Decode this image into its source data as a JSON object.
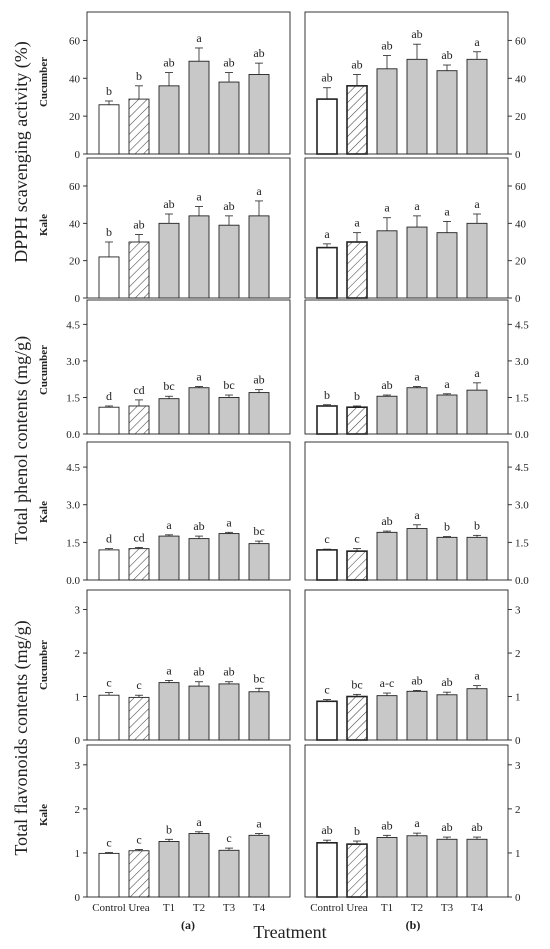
{
  "figure": {
    "xlabel": "Treatment",
    "panel_labels": [
      "(a)",
      "(b)"
    ],
    "group_ylabels": [
      "DPPH scavenging activity (%)",
      "Total phenol contents (mg/g)",
      "Total flavonoids contents (mg/g)"
    ],
    "row_labels": [
      "Cucumber",
      "Kale",
      "Cucumber",
      "Kale",
      "Cucumber",
      "Kale"
    ],
    "colors": {
      "bar_fill": "#c8c8c8",
      "control_fill": "#ffffff",
      "stroke": "#222222"
    }
  },
  "chart_data": [
    {
      "type": "bar",
      "row": "Cucumber",
      "panel": "(a)",
      "categories": [
        "Control",
        "Urea",
        "T1",
        "T2",
        "T3",
        "T4"
      ],
      "values": [
        26,
        29,
        36,
        49,
        38,
        42
      ],
      "errors": [
        2,
        7,
        7,
        7,
        5,
        6
      ],
      "letters": [
        "b",
        "b",
        "ab",
        "a",
        "ab",
        "ab"
      ],
      "ylim": [
        0,
        75
      ],
      "yticks": [
        0,
        20,
        40,
        60
      ],
      "xlabel": "",
      "ylabel": "DPPH scavenging activity (%)",
      "grid": false
    },
    {
      "type": "bar",
      "row": "Cucumber",
      "panel": "(b)",
      "categories": [
        "Control",
        "Urea",
        "T1",
        "T2",
        "T3",
        "T4"
      ],
      "values": [
        29,
        36,
        45,
        50,
        44,
        50
      ],
      "errors": [
        6,
        6,
        7,
        8,
        3,
        4
      ],
      "letters": [
        "ab",
        "ab",
        "ab",
        "ab",
        "ab",
        "a"
      ],
      "ylim": [
        0,
        75
      ],
      "yticks": [
        0,
        20,
        40,
        60
      ],
      "xlabel": "",
      "ylabel": "",
      "grid": false
    },
    {
      "type": "bar",
      "row": "Kale",
      "panel": "(a)",
      "categories": [
        "Control",
        "Urea",
        "T1",
        "T2",
        "T3",
        "T4"
      ],
      "values": [
        22,
        30,
        40,
        44,
        39,
        44
      ],
      "errors": [
        8,
        4,
        5,
        5,
        5,
        8
      ],
      "letters": [
        "b",
        "ab",
        "ab",
        "a",
        "ab",
        "a"
      ],
      "ylim": [
        0,
        75
      ],
      "yticks": [
        0,
        20,
        40,
        60
      ],
      "xlabel": "",
      "ylabel": "",
      "grid": false
    },
    {
      "type": "bar",
      "row": "Kale",
      "panel": "(b)",
      "categories": [
        "Control",
        "Urea",
        "T1",
        "T2",
        "T3",
        "T4"
      ],
      "values": [
        27,
        30,
        36,
        38,
        35,
        40
      ],
      "errors": [
        2,
        5,
        7,
        6,
        6,
        5
      ],
      "letters": [
        "a",
        "a",
        "a",
        "a",
        "a",
        "a"
      ],
      "ylim": [
        0,
        75
      ],
      "yticks": [
        0,
        20,
        40,
        60
      ],
      "xlabel": "",
      "ylabel": "",
      "grid": false
    },
    {
      "type": "bar",
      "row": "Cucumber",
      "panel": "(a)",
      "categories": [
        "Control",
        "Urea",
        "T1",
        "T2",
        "T3",
        "T4"
      ],
      "values": [
        1.1,
        1.15,
        1.45,
        1.9,
        1.5,
        1.7
      ],
      "errors": [
        0.05,
        0.25,
        0.1,
        0.05,
        0.1,
        0.12
      ],
      "letters": [
        "d",
        "cd",
        "bc",
        "a",
        "bc",
        "ab"
      ],
      "ylim": [
        0,
        5.5
      ],
      "yticks": [
        0.0,
        1.5,
        3.0,
        4.5
      ],
      "xlabel": "",
      "ylabel": "Total phenol contents (mg/g)",
      "grid": false
    },
    {
      "type": "bar",
      "row": "Cucumber",
      "panel": "(b)",
      "categories": [
        "Control",
        "Urea",
        "T1",
        "T2",
        "T3",
        "T4"
      ],
      "values": [
        1.15,
        1.1,
        1.55,
        1.9,
        1.6,
        1.8
      ],
      "errors": [
        0.05,
        0.05,
        0.05,
        0.05,
        0.05,
        0.3
      ],
      "letters": [
        "b",
        "b",
        "ab",
        "a",
        "a",
        "a"
      ],
      "ylim": [
        0,
        5.5
      ],
      "yticks": [
        0.0,
        1.5,
        3.0,
        4.5
      ],
      "xlabel": "",
      "ylabel": "",
      "grid": false
    },
    {
      "type": "bar",
      "row": "Kale",
      "panel": "(a)",
      "categories": [
        "Control",
        "Urea",
        "T1",
        "T2",
        "T3",
        "T4"
      ],
      "values": [
        1.2,
        1.25,
        1.75,
        1.65,
        1.85,
        1.45
      ],
      "errors": [
        0.05,
        0.05,
        0.05,
        0.1,
        0.05,
        0.1
      ],
      "letters": [
        "d",
        "cd",
        "a",
        "ab",
        "a",
        "bc"
      ],
      "ylim": [
        0,
        5.5
      ],
      "yticks": [
        0.0,
        1.5,
        3.0,
        4.5
      ],
      "xlabel": "",
      "ylabel": "",
      "grid": false
    },
    {
      "type": "bar",
      "row": "Kale",
      "panel": "(b)",
      "categories": [
        "Control",
        "Urea",
        "T1",
        "T2",
        "T3",
        "T4"
      ],
      "values": [
        1.2,
        1.15,
        1.9,
        2.05,
        1.7,
        1.7
      ],
      "errors": [
        0.03,
        0.1,
        0.05,
        0.15,
        0.03,
        0.08
      ],
      "letters": [
        "c",
        "c",
        "ab",
        "a",
        "b",
        "b"
      ],
      "ylim": [
        0,
        5.5
      ],
      "yticks": [
        0.0,
        1.5,
        3.0,
        4.5
      ],
      "xlabel": "",
      "ylabel": "",
      "grid": false
    },
    {
      "type": "bar",
      "row": "Cucumber",
      "panel": "(a)",
      "categories": [
        "Control",
        "Urea",
        "T1",
        "T2",
        "T3",
        "T4"
      ],
      "values": [
        1.03,
        0.98,
        1.32,
        1.24,
        1.29,
        1.11
      ],
      "errors": [
        0.06,
        0.05,
        0.05,
        0.1,
        0.05,
        0.08
      ],
      "letters": [
        "c",
        "c",
        "a",
        "ab",
        "ab",
        "bc"
      ],
      "ylim": [
        0,
        3.45
      ],
      "yticks": [
        0,
        1,
        2,
        3
      ],
      "xlabel": "",
      "ylabel": "Total flavonoids contents (mg/g)",
      "grid": false
    },
    {
      "type": "bar",
      "row": "Cucumber",
      "panel": "(b)",
      "categories": [
        "Control",
        "Urea",
        "T1",
        "T2",
        "T3",
        "T4"
      ],
      "values": [
        0.89,
        1.0,
        1.02,
        1.12,
        1.04,
        1.18
      ],
      "errors": [
        0.04,
        0.05,
        0.06,
        0.02,
        0.06,
        0.07
      ],
      "letters": [
        "c",
        "bc",
        "a-c",
        "ab",
        "ab",
        "a"
      ],
      "ylim": [
        0,
        3.45
      ],
      "yticks": [
        0,
        1,
        2,
        3
      ],
      "xlabel": "",
      "ylabel": "",
      "grid": false
    },
    {
      "type": "bar",
      "row": "Kale",
      "panel": "(a)",
      "categories": [
        "Control",
        "Urea",
        "T1",
        "T2",
        "T3",
        "T4"
      ],
      "values": [
        0.99,
        1.05,
        1.26,
        1.44,
        1.06,
        1.4
      ],
      "errors": [
        0.02,
        0.03,
        0.05,
        0.04,
        0.05,
        0.04
      ],
      "letters": [
        "c",
        "c",
        "b",
        "a",
        "c",
        "a"
      ],
      "ylim": [
        0,
        3.45
      ],
      "yticks": [
        0,
        1,
        2,
        3
      ],
      "xlabel": "",
      "ylabel": "",
      "grid": false
    },
    {
      "type": "bar",
      "row": "Kale",
      "panel": "(b)",
      "categories": [
        "Control",
        "Urea",
        "T1",
        "T2",
        "T3",
        "T4"
      ],
      "values": [
        1.23,
        1.2,
        1.35,
        1.39,
        1.31,
        1.31
      ],
      "errors": [
        0.06,
        0.07,
        0.05,
        0.06,
        0.05,
        0.05
      ],
      "letters": [
        "ab",
        "b",
        "ab",
        "a",
        "ab",
        "ab"
      ],
      "ylim": [
        0,
        3.45
      ],
      "yticks": [
        0,
        1,
        2,
        3
      ],
      "xlabel": "",
      "ylabel": "",
      "grid": false
    }
  ]
}
